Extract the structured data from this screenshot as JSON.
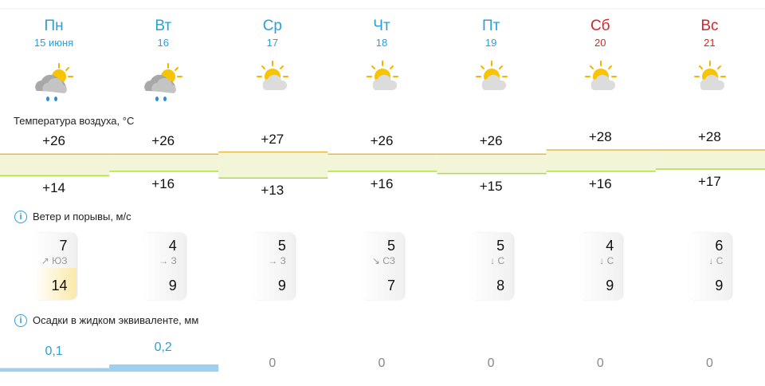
{
  "days": [
    {
      "name": "Пн",
      "date": "15 июня",
      "color": "#2a9fd8"
    },
    {
      "name": "Вт",
      "date": "16",
      "color": "#2a9fd8"
    },
    {
      "name": "Ср",
      "date": "17",
      "color": "#2a9fd8"
    },
    {
      "name": "Чт",
      "date": "18",
      "color": "#2a9fd8"
    },
    {
      "name": "Пт",
      "date": "19",
      "color": "#2a9fd8"
    },
    {
      "name": "Сб",
      "date": "20",
      "color": "#d0282c"
    },
    {
      "name": "Вс",
      "date": "21",
      "color": "#d0282c"
    }
  ],
  "temperature": {
    "label": "Температура воздуха, °C",
    "max": [
      "+26",
      "+26",
      "+27",
      "+26",
      "+26",
      "+28",
      "+28"
    ],
    "min": [
      "+14",
      "+16",
      "+13",
      "+16",
      "+15",
      "+16",
      "+17"
    ]
  },
  "wind": {
    "label": "Ветер и порывы, м/с",
    "speed": [
      "7",
      "4",
      "5",
      "5",
      "5",
      "4",
      "6"
    ],
    "direction": [
      "↗ ЮЗ",
      "→ З",
      "→ З",
      "↘ СЗ",
      "↓ С",
      "↓ С",
      "↓ С"
    ],
    "gust": [
      "14",
      "9",
      "9",
      "7",
      "8",
      "9",
      "9"
    ]
  },
  "precipitation": {
    "label": "Осадки в жидком эквиваленте, мм",
    "values": [
      "0,1",
      "0,2",
      "0",
      "0",
      "0",
      "0",
      "0"
    ]
  }
}
